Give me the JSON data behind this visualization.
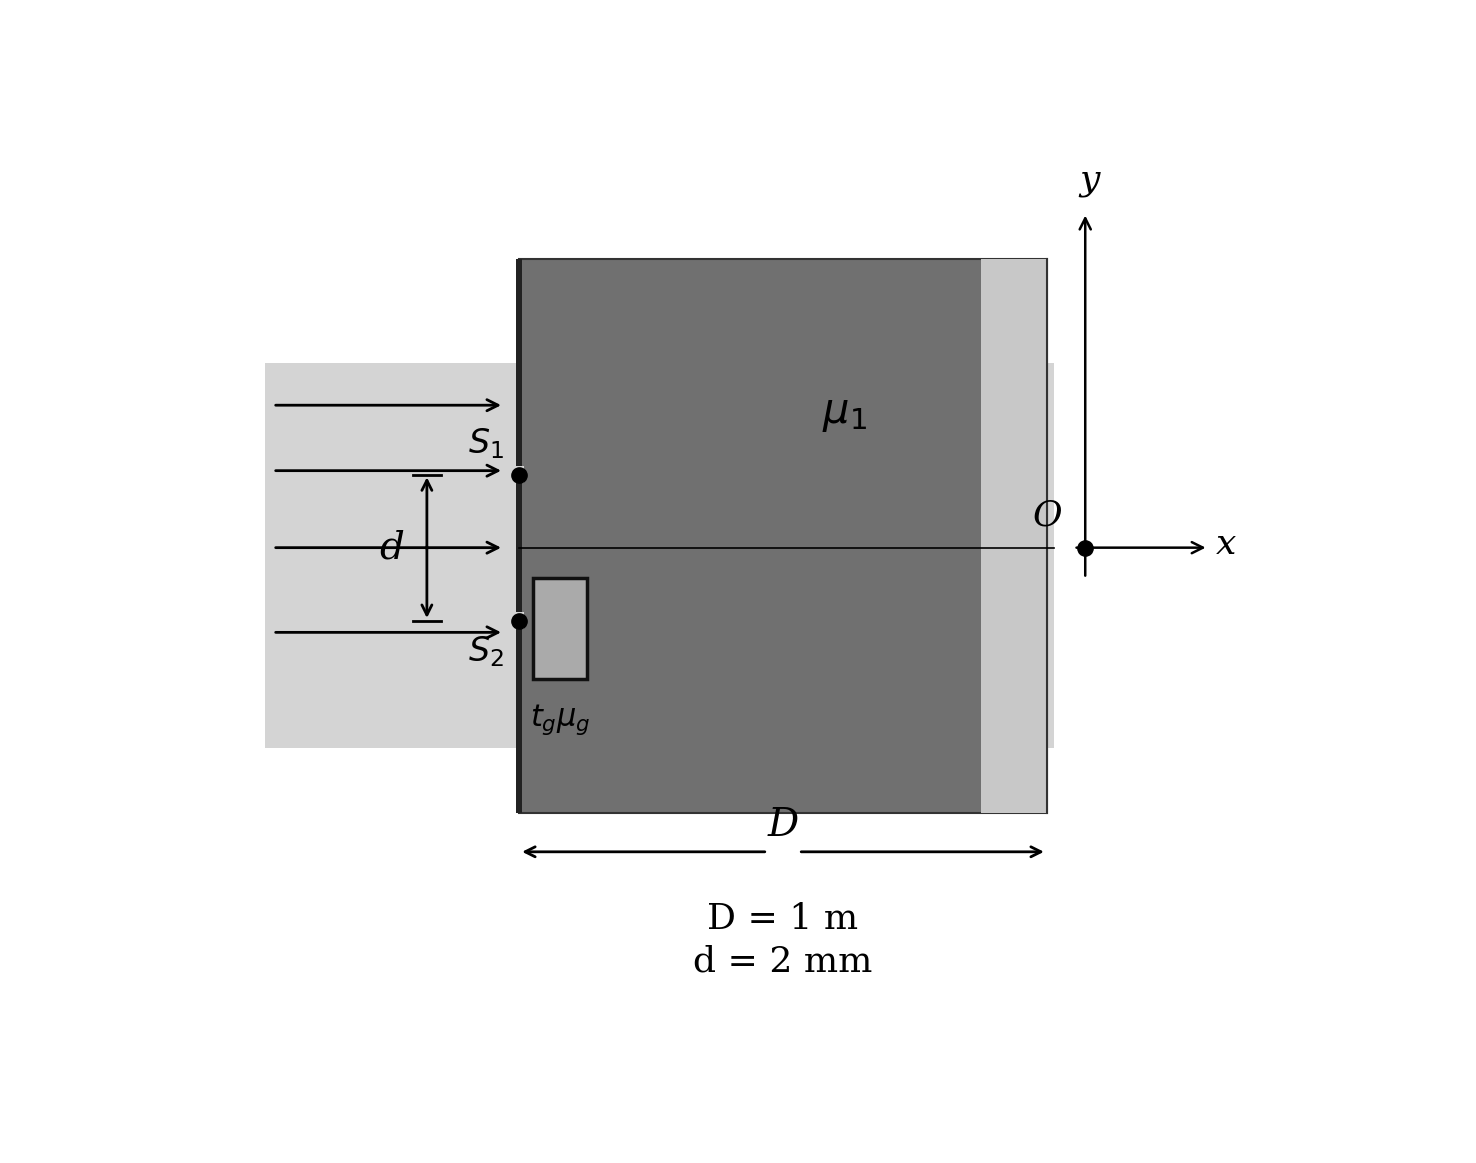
{
  "bg_color": "#ffffff",
  "light_gray": "#d4d4d4",
  "dark_gray": "#707070",
  "glass_fill": "#aaaaaa",
  "glass_edge": "#111111",
  "fig_width": 14.76,
  "fig_height": 11.63,
  "D_label": "D",
  "D_value": "D = 1 m",
  "d_value": "d = 2 mm",
  "mu1_label": "$\\mu_1$",
  "S1_label": "$S_1$",
  "S2_label": "$S_2$",
  "tg_label": "$t_g\\mu_g$",
  "O_label": "O",
  "x_label": "x",
  "y_label": "y",
  "d_label": "d"
}
